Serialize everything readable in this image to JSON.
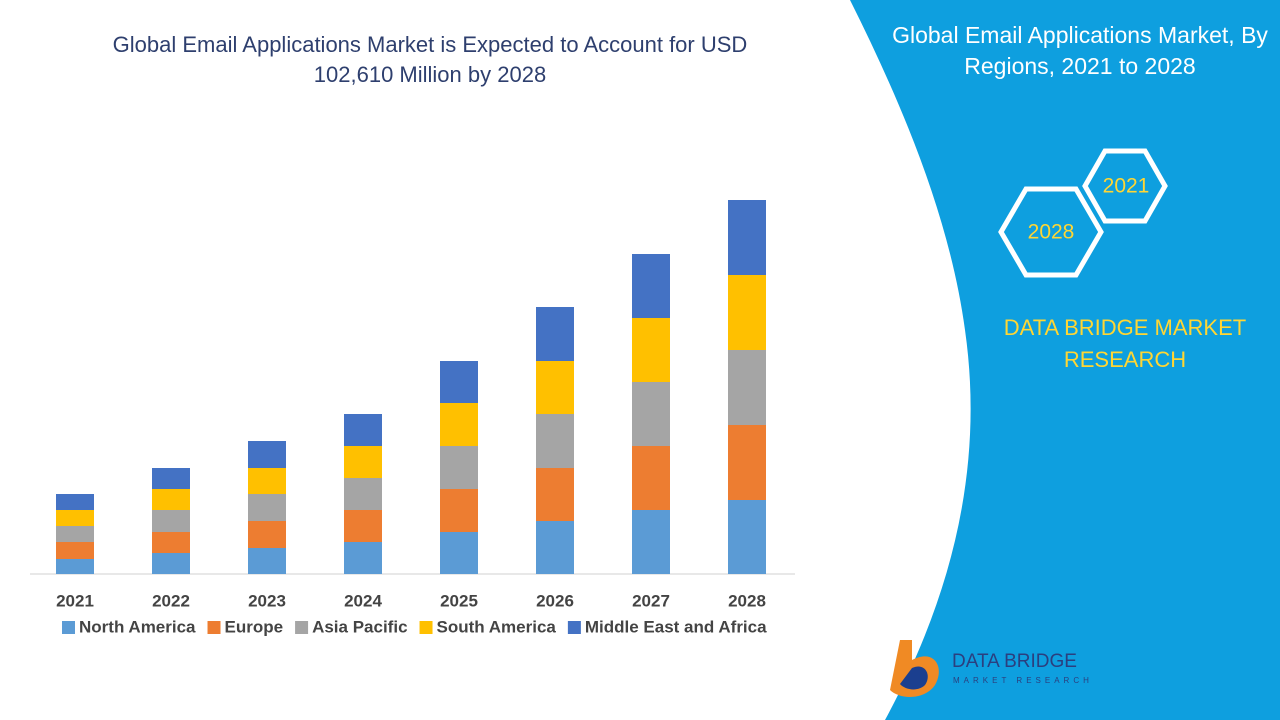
{
  "chart_data": {
    "type": "stacked-bar",
    "title": "Global Email Applications Market is Expected to Account for USD 102,610 Million by 2028",
    "categories": [
      "2021",
      "2022",
      "2023",
      "2024",
      "2025",
      "2026",
      "2027",
      "2028"
    ],
    "series": [
      {
        "name": "North America",
        "color": "#5b9bd5",
        "values": [
          15,
          21,
          26,
          32,
          42,
          53,
          64,
          74
        ]
      },
      {
        "name": "Europe",
        "color": "#ed7d31",
        "values": [
          17,
          21,
          27,
          32,
          43,
          53,
          64,
          75
        ]
      },
      {
        "name": "Asia Pacific",
        "color": "#a5a5a5",
        "values": [
          16,
          22,
          27,
          32,
          43,
          54,
          64,
          75
        ]
      },
      {
        "name": "South America",
        "color": "#ffc000",
        "values": [
          16,
          21,
          26,
          32,
          43,
          53,
          64,
          75
        ]
      },
      {
        "name": "Middle East and Africa",
        "color": "#4472c4",
        "values": [
          16,
          21,
          27,
          32,
          42,
          54,
          64,
          75
        ]
      }
    ],
    "ylim": [
      0,
      400
    ]
  },
  "panel": {
    "title": "Global Email Applications Market, By Regions, 2021 to 2028",
    "hex_start": "2021",
    "hex_end": "2028",
    "brand": "DATA BRIDGE MARKET RESEARCH"
  },
  "logo": {
    "name": "DATA BRIDGE",
    "tagline": "MARKET RESEARCH"
  }
}
